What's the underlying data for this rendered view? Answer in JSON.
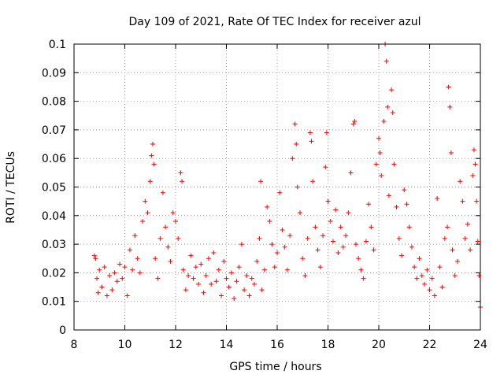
{
  "chart_data": {
    "type": "scatter",
    "title": "Day 109 of 2021, Rate Of TEC Index for receiver azul",
    "xlabel": "GPS time / hours",
    "ylabel": "ROTI / TECUs",
    "xlim": [
      8,
      24
    ],
    "ylim": [
      0,
      0.1
    ],
    "xticks": [
      "8",
      "10",
      "12",
      "14",
      "16",
      "18",
      "20",
      "22",
      "24"
    ],
    "yticks": [
      "0",
      "0.01",
      "0.02",
      "0.03",
      "0.04",
      "0.05",
      "0.06",
      "0.07",
      "0.08",
      "0.09",
      "0.1"
    ],
    "grid": true,
    "marker": "+",
    "color": "#ff0000",
    "series": [
      {
        "points": [
          [
            8.8,
            0.026
          ],
          [
            8.85,
            0.025
          ],
          [
            8.9,
            0.018
          ],
          [
            8.95,
            0.013
          ],
          [
            9.0,
            0.021
          ],
          [
            9.1,
            0.015
          ],
          [
            9.2,
            0.022
          ],
          [
            9.3,
            0.012
          ],
          [
            9.4,
            0.019
          ],
          [
            9.5,
            0.014
          ],
          [
            9.6,
            0.02
          ],
          [
            9.7,
            0.017
          ],
          [
            9.8,
            0.023
          ],
          [
            9.9,
            0.018
          ],
          [
            10.0,
            0.022
          ],
          [
            10.1,
            0.012
          ],
          [
            10.2,
            0.028
          ],
          [
            10.3,
            0.021
          ],
          [
            10.4,
            0.033
          ],
          [
            10.5,
            0.025
          ],
          [
            10.6,
            0.02
          ],
          [
            10.7,
            0.038
          ],
          [
            10.8,
            0.045
          ],
          [
            10.9,
            0.041
          ],
          [
            11.0,
            0.052
          ],
          [
            11.05,
            0.061
          ],
          [
            11.1,
            0.065
          ],
          [
            11.15,
            0.058
          ],
          [
            11.2,
            0.025
          ],
          [
            11.3,
            0.018
          ],
          [
            11.4,
            0.032
          ],
          [
            11.5,
            0.048
          ],
          [
            11.6,
            0.036
          ],
          [
            11.7,
            0.029
          ],
          [
            11.8,
            0.024
          ],
          [
            11.9,
            0.041
          ],
          [
            12.0,
            0.038
          ],
          [
            12.1,
            0.032
          ],
          [
            12.2,
            0.055
          ],
          [
            12.25,
            0.052
          ],
          [
            12.3,
            0.021
          ],
          [
            12.4,
            0.014
          ],
          [
            12.5,
            0.019
          ],
          [
            12.6,
            0.026
          ],
          [
            12.7,
            0.018
          ],
          [
            12.8,
            0.022
          ],
          [
            12.9,
            0.016
          ],
          [
            13.0,
            0.023
          ],
          [
            13.1,
            0.013
          ],
          [
            13.2,
            0.019
          ],
          [
            13.3,
            0.025
          ],
          [
            13.4,
            0.016
          ],
          [
            13.5,
            0.027
          ],
          [
            13.6,
            0.017
          ],
          [
            13.7,
            0.021
          ],
          [
            13.8,
            0.012
          ],
          [
            13.9,
            0.024
          ],
          [
            14.0,
            0.018
          ],
          [
            14.1,
            0.015
          ],
          [
            14.2,
            0.02
          ],
          [
            14.3,
            0.011
          ],
          [
            14.4,
            0.017
          ],
          [
            14.5,
            0.022
          ],
          [
            14.6,
            0.03
          ],
          [
            14.7,
            0.014
          ],
          [
            14.8,
            0.019
          ],
          [
            14.9,
            0.012
          ],
          [
            15.0,
            0.018
          ],
          [
            15.1,
            0.016
          ],
          [
            15.2,
            0.024
          ],
          [
            15.3,
            0.032
          ],
          [
            15.35,
            0.052
          ],
          [
            15.4,
            0.014
          ],
          [
            15.5,
            0.021
          ],
          [
            15.6,
            0.043
          ],
          [
            15.7,
            0.038
          ],
          [
            15.8,
            0.03
          ],
          [
            15.9,
            0.022
          ],
          [
            16.0,
            0.027
          ],
          [
            16.1,
            0.048
          ],
          [
            16.2,
            0.035
          ],
          [
            16.3,
            0.029
          ],
          [
            16.4,
            0.021
          ],
          [
            16.5,
            0.033
          ],
          [
            16.6,
            0.06
          ],
          [
            16.7,
            0.072
          ],
          [
            16.75,
            0.065
          ],
          [
            16.8,
            0.05
          ],
          [
            16.9,
            0.041
          ],
          [
            17.0,
            0.025
          ],
          [
            17.1,
            0.019
          ],
          [
            17.2,
            0.032
          ],
          [
            17.3,
            0.069
          ],
          [
            17.35,
            0.066
          ],
          [
            17.4,
            0.052
          ],
          [
            17.5,
            0.036
          ],
          [
            17.6,
            0.028
          ],
          [
            17.7,
            0.022
          ],
          [
            17.8,
            0.033
          ],
          [
            17.9,
            0.057
          ],
          [
            17.95,
            0.069
          ],
          [
            18.0,
            0.045
          ],
          [
            18.1,
            0.038
          ],
          [
            18.2,
            0.031
          ],
          [
            18.3,
            0.042
          ],
          [
            18.4,
            0.027
          ],
          [
            18.5,
            0.036
          ],
          [
            18.6,
            0.029
          ],
          [
            18.7,
            0.033
          ],
          [
            18.8,
            0.041
          ],
          [
            18.9,
            0.055
          ],
          [
            19.0,
            0.072
          ],
          [
            19.05,
            0.073
          ],
          [
            19.1,
            0.03
          ],
          [
            19.2,
            0.025
          ],
          [
            19.3,
            0.021
          ],
          [
            19.4,
            0.018
          ],
          [
            19.5,
            0.031
          ],
          [
            19.6,
            0.044
          ],
          [
            19.7,
            0.036
          ],
          [
            19.8,
            0.028
          ],
          [
            19.9,
            0.058
          ],
          [
            20.0,
            0.067
          ],
          [
            20.05,
            0.062
          ],
          [
            20.1,
            0.054
          ],
          [
            20.2,
            0.073
          ],
          [
            20.25,
            0.1
          ],
          [
            20.3,
            0.094
          ],
          [
            20.35,
            0.078
          ],
          [
            20.4,
            0.047
          ],
          [
            20.5,
            0.084
          ],
          [
            20.55,
            0.076
          ],
          [
            20.6,
            0.058
          ],
          [
            20.7,
            0.043
          ],
          [
            20.8,
            0.032
          ],
          [
            20.9,
            0.026
          ],
          [
            21.0,
            0.049
          ],
          [
            21.1,
            0.044
          ],
          [
            21.2,
            0.036
          ],
          [
            21.3,
            0.029
          ],
          [
            21.4,
            0.022
          ],
          [
            21.5,
            0.018
          ],
          [
            21.6,
            0.025
          ],
          [
            21.7,
            0.019
          ],
          [
            21.8,
            0.016
          ],
          [
            21.9,
            0.021
          ],
          [
            22.0,
            0.014
          ],
          [
            22.1,
            0.018
          ],
          [
            22.2,
            0.012
          ],
          [
            22.3,
            0.046
          ],
          [
            22.4,
            0.022
          ],
          [
            22.5,
            0.015
          ],
          [
            22.6,
            0.032
          ],
          [
            22.7,
            0.036
          ],
          [
            22.75,
            0.085
          ],
          [
            22.8,
            0.078
          ],
          [
            22.85,
            0.062
          ],
          [
            22.9,
            0.028
          ],
          [
            23.0,
            0.019
          ],
          [
            23.1,
            0.024
          ],
          [
            23.2,
            0.052
          ],
          [
            23.3,
            0.045
          ],
          [
            23.4,
            0.032
          ],
          [
            23.5,
            0.037
          ],
          [
            23.6,
            0.028
          ],
          [
            23.7,
            0.054
          ],
          [
            23.75,
            0.063
          ],
          [
            23.8,
            0.058
          ],
          [
            23.85,
            0.045
          ],
          [
            23.9,
            0.031
          ],
          [
            23.95,
            0.019
          ],
          [
            24.0,
            0.008
          ]
        ]
      }
    ]
  }
}
